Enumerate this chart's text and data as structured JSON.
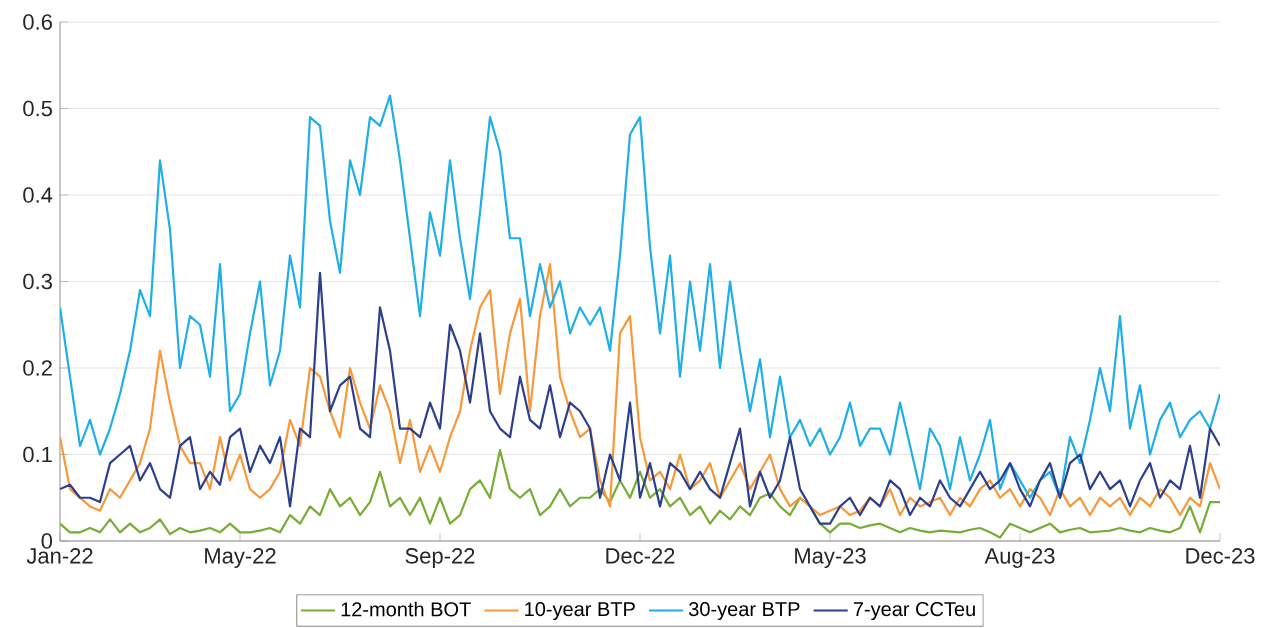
{
  "chart_data": {
    "type": "line",
    "categories": [
      "Jan-22",
      null,
      null,
      null,
      null,
      null,
      null,
      null,
      null,
      null,
      null,
      null,
      null,
      null,
      null,
      null,
      null,
      null,
      "May-22",
      null,
      null,
      null,
      null,
      null,
      null,
      null,
      null,
      null,
      null,
      null,
      null,
      null,
      null,
      null,
      null,
      null,
      null,
      null,
      "Sep-22",
      null,
      null,
      null,
      null,
      null,
      null,
      null,
      null,
      null,
      null,
      null,
      null,
      null,
      null,
      null,
      null,
      null,
      null,
      null,
      "Dec-22",
      null,
      null,
      null,
      null,
      null,
      null,
      null,
      null,
      null,
      null,
      null,
      null,
      null,
      null,
      null,
      null,
      null,
      null,
      "May-23",
      null,
      null,
      null,
      null,
      null,
      null,
      null,
      null,
      null,
      null,
      null,
      null,
      null,
      null,
      null,
      null,
      null,
      null,
      "Aug-23",
      null,
      null,
      null,
      null,
      null,
      null,
      null,
      null,
      null,
      null,
      null,
      null,
      null,
      null,
      null,
      null,
      null,
      null,
      null,
      "Dec-23"
    ],
    "ylim": [
      0,
      0.6
    ],
    "yticks": [
      0,
      0.1,
      0.2,
      0.3,
      0.4,
      0.5,
      0.6
    ],
    "grid": "y",
    "legend": "bottom",
    "series": [
      {
        "name": "12-month BOT",
        "color": "#77ad35",
        "values": [
          0.02,
          0.01,
          0.01,
          0.015,
          0.01,
          0.025,
          0.01,
          0.02,
          0.01,
          0.015,
          0.025,
          0.008,
          0.015,
          0.01,
          0.012,
          0.015,
          0.01,
          0.02,
          0.01,
          0.01,
          0.012,
          0.015,
          0.01,
          0.03,
          0.02,
          0.04,
          0.03,
          0.06,
          0.04,
          0.05,
          0.03,
          0.045,
          0.08,
          0.04,
          0.05,
          0.03,
          0.05,
          0.02,
          0.05,
          0.02,
          0.03,
          0.06,
          0.07,
          0.05,
          0.105,
          0.06,
          0.05,
          0.06,
          0.03,
          0.04,
          0.06,
          0.04,
          0.05,
          0.05,
          0.06,
          0.045,
          0.07,
          0.05,
          0.08,
          0.05,
          0.06,
          0.04,
          0.05,
          0.03,
          0.04,
          0.02,
          0.035,
          0.025,
          0.04,
          0.03,
          0.05,
          0.055,
          0.04,
          0.03,
          0.05,
          0.04,
          0.02,
          0.01,
          0.02,
          0.02,
          0.015,
          0.018,
          0.02,
          0.015,
          0.01,
          0.015,
          0.012,
          0.01,
          0.012,
          0.011,
          0.01,
          0.013,
          0.015,
          0.01,
          0.004,
          0.02,
          0.015,
          0.01,
          0.015,
          0.02,
          0.01,
          0.013,
          0.015,
          0.01,
          0.011,
          0.012,
          0.015,
          0.012,
          0.01,
          0.015,
          0.012,
          0.01,
          0.015,
          0.04,
          0.01,
          0.045,
          0.045
        ]
      },
      {
        "name": "10-year BTP",
        "color": "#f7993a",
        "values": [
          0.12,
          0.06,
          0.05,
          0.04,
          0.035,
          0.06,
          0.05,
          0.07,
          0.09,
          0.13,
          0.22,
          0.16,
          0.11,
          0.09,
          0.09,
          0.06,
          0.12,
          0.07,
          0.1,
          0.06,
          0.05,
          0.06,
          0.08,
          0.14,
          0.11,
          0.2,
          0.19,
          0.15,
          0.12,
          0.2,
          0.16,
          0.13,
          0.18,
          0.15,
          0.09,
          0.14,
          0.08,
          0.11,
          0.08,
          0.12,
          0.15,
          0.22,
          0.27,
          0.29,
          0.17,
          0.24,
          0.28,
          0.15,
          0.26,
          0.32,
          0.19,
          0.15,
          0.12,
          0.13,
          0.07,
          0.04,
          0.24,
          0.26,
          0.12,
          0.07,
          0.08,
          0.06,
          0.1,
          0.06,
          0.07,
          0.09,
          0.05,
          0.07,
          0.09,
          0.06,
          0.08,
          0.1,
          0.06,
          0.04,
          0.05,
          0.04,
          0.03,
          0.035,
          0.04,
          0.03,
          0.035,
          0.05,
          0.04,
          0.06,
          0.03,
          0.05,
          0.04,
          0.045,
          0.05,
          0.03,
          0.05,
          0.04,
          0.06,
          0.07,
          0.05,
          0.06,
          0.04,
          0.06,
          0.05,
          0.03,
          0.06,
          0.04,
          0.05,
          0.03,
          0.05,
          0.04,
          0.05,
          0.03,
          0.05,
          0.04,
          0.06,
          0.05,
          0.03,
          0.05,
          0.04,
          0.09,
          0.06
        ]
      },
      {
        "name": "30-year BTP",
        "color": "#1eaee8",
        "values": [
          0.27,
          0.19,
          0.11,
          0.14,
          0.1,
          0.13,
          0.17,
          0.22,
          0.29,
          0.26,
          0.44,
          0.36,
          0.2,
          0.26,
          0.25,
          0.19,
          0.32,
          0.15,
          0.17,
          0.24,
          0.3,
          0.18,
          0.22,
          0.33,
          0.27,
          0.49,
          0.48,
          0.37,
          0.31,
          0.44,
          0.4,
          0.49,
          0.48,
          0.515,
          0.44,
          0.35,
          0.26,
          0.38,
          0.33,
          0.44,
          0.35,
          0.28,
          0.38,
          0.49,
          0.45,
          0.35,
          0.35,
          0.26,
          0.32,
          0.27,
          0.3,
          0.24,
          0.27,
          0.25,
          0.27,
          0.22,
          0.33,
          0.47,
          0.49,
          0.34,
          0.24,
          0.33,
          0.19,
          0.3,
          0.22,
          0.32,
          0.2,
          0.3,
          0.22,
          0.15,
          0.21,
          0.12,
          0.19,
          0.12,
          0.14,
          0.11,
          0.13,
          0.1,
          0.12,
          0.16,
          0.11,
          0.13,
          0.13,
          0.1,
          0.16,
          0.11,
          0.06,
          0.13,
          0.11,
          0.06,
          0.12,
          0.07,
          0.1,
          0.14,
          0.06,
          0.09,
          0.07,
          0.05,
          0.07,
          0.08,
          0.05,
          0.12,
          0.09,
          0.14,
          0.2,
          0.15,
          0.26,
          0.13,
          0.18,
          0.1,
          0.14,
          0.16,
          0.12,
          0.14,
          0.15,
          0.13,
          0.17
        ]
      },
      {
        "name": "7-year CCTeu",
        "color": "#2b3f8e",
        "values": [
          0.06,
          0.065,
          0.05,
          0.05,
          0.045,
          0.09,
          0.1,
          0.11,
          0.07,
          0.09,
          0.06,
          0.05,
          0.11,
          0.12,
          0.06,
          0.08,
          0.065,
          0.12,
          0.13,
          0.08,
          0.11,
          0.09,
          0.12,
          0.04,
          0.13,
          0.12,
          0.31,
          0.15,
          0.18,
          0.19,
          0.13,
          0.12,
          0.27,
          0.22,
          0.13,
          0.13,
          0.12,
          0.16,
          0.13,
          0.25,
          0.22,
          0.16,
          0.24,
          0.15,
          0.13,
          0.12,
          0.19,
          0.14,
          0.13,
          0.18,
          0.12,
          0.16,
          0.15,
          0.13,
          0.05,
          0.1,
          0.07,
          0.16,
          0.05,
          0.09,
          0.04,
          0.09,
          0.08,
          0.06,
          0.08,
          0.06,
          0.05,
          0.09,
          0.13,
          0.04,
          0.08,
          0.05,
          0.07,
          0.12,
          0.06,
          0.04,
          0.02,
          0.02,
          0.04,
          0.05,
          0.03,
          0.05,
          0.04,
          0.07,
          0.06,
          0.03,
          0.05,
          0.04,
          0.07,
          0.05,
          0.04,
          0.06,
          0.08,
          0.06,
          0.07,
          0.09,
          0.06,
          0.04,
          0.07,
          0.09,
          0.05,
          0.09,
          0.1,
          0.06,
          0.08,
          0.06,
          0.07,
          0.04,
          0.07,
          0.09,
          0.05,
          0.07,
          0.06,
          0.11,
          0.05,
          0.13,
          0.11
        ]
      }
    ]
  }
}
